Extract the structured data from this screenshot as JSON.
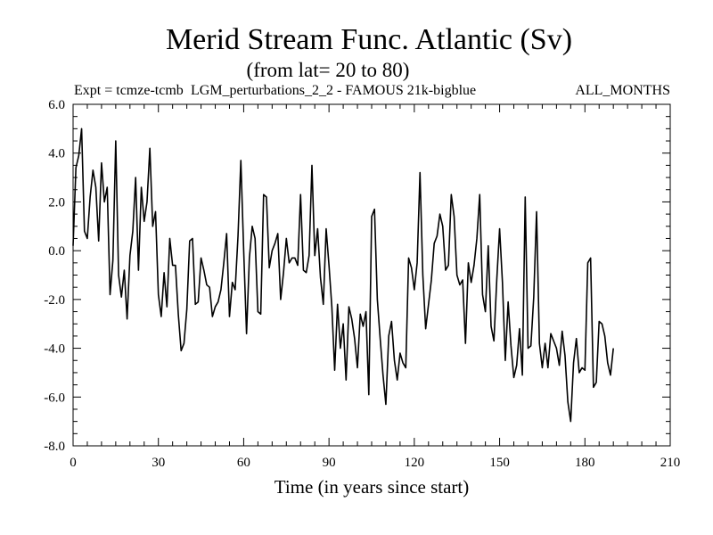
{
  "chart_data": {
    "type": "line",
    "title": "Merid Stream Func. Atlantic (Sv)",
    "subtitle": "(from lat= 20 to 80)",
    "header_left": "Expt = tcmze-tcmb",
    "header_center": "LGM_perturbations_2_2 - FAMOUS 21k-bigblue",
    "header_right": "ALL_MONTHS",
    "xlabel": "Time (in years since start)",
    "ylabel": "",
    "xlim": [
      0,
      210
    ],
    "ylim": [
      -8,
      6
    ],
    "x_ticks": [
      0,
      30,
      60,
      90,
      120,
      150,
      180,
      210
    ],
    "x_tick_labels": [
      "0",
      "30",
      "60",
      "90",
      "120",
      "150",
      "180",
      "210"
    ],
    "y_ticks": [
      -8,
      -6,
      -4,
      -2,
      0,
      2,
      4,
      6
    ],
    "y_tick_labels": [
      "-8.0",
      "-6.0",
      "-4.0",
      "-2.0",
      "0.0",
      "2.0",
      "4.0",
      "6.0"
    ],
    "grid": false,
    "line_color": "#000000",
    "x_start": 0,
    "x_step": 1,
    "series": [
      {
        "name": "Merid Stream Func. Atlantic",
        "values": [
          0.2,
          3.4,
          3.9,
          5.0,
          0.8,
          0.5,
          2.2,
          3.3,
          2.6,
          0.4,
          3.6,
          2.0,
          2.6,
          -1.8,
          -0.4,
          4.5,
          -1.0,
          -1.9,
          -0.8,
          -2.8,
          -0.2,
          0.8,
          3.0,
          -0.8,
          2.6,
          1.2,
          2.0,
          4.2,
          1.0,
          1.6,
          -1.8,
          -2.7,
          -0.9,
          -2.3,
          0.5,
          -0.6,
          -0.6,
          -2.6,
          -4.1,
          -3.8,
          -2.4,
          0.4,
          0.5,
          -2.2,
          -2.1,
          -0.3,
          -0.8,
          -1.4,
          -1.5,
          -2.7,
          -2.3,
          -2.1,
          -1.6,
          -0.5,
          0.7,
          -2.7,
          -1.3,
          -1.6,
          0.6,
          3.7,
          0.0,
          -3.4,
          -0.3,
          1.0,
          0.5,
          -2.5,
          -2.6,
          2.3,
          2.2,
          -0.7,
          0.0,
          0.3,
          0.7,
          -2.0,
          -0.9,
          0.5,
          -0.5,
          -0.3,
          -0.3,
          -0.6,
          2.3,
          -0.8,
          -0.9,
          -0.2,
          3.5,
          -0.2,
          0.9,
          -1.1,
          -2.2,
          0.9,
          -0.6,
          -2.3,
          -4.9,
          -2.2,
          -4.0,
          -3.0,
          -5.3,
          -2.3,
          -2.8,
          -3.6,
          -4.8,
          -2.6,
          -3.1,
          -2.5,
          -5.9,
          1.4,
          1.7,
          -2.0,
          -3.6,
          -5.1,
          -6.3,
          -3.5,
          -2.9,
          -4.5,
          -5.3,
          -4.2,
          -4.6,
          -4.8,
          -0.3,
          -0.7,
          -1.6,
          -0.5,
          3.2,
          -1.0,
          -3.2,
          -2.2,
          -1.2,
          0.3,
          0.6,
          1.5,
          1.0,
          -0.8,
          -0.6,
          2.3,
          1.4,
          -1.0,
          -1.4,
          -1.2,
          -3.8,
          -0.5,
          -1.3,
          -0.6,
          0.5,
          2.3,
          -1.8,
          -2.5,
          0.2,
          -3.1,
          -3.7,
          -1.2,
          0.9,
          -1.3,
          -4.5,
          -2.1,
          -3.9,
          -5.2,
          -4.7,
          -3.2,
          -5.1,
          2.2,
          -4.0,
          -3.9,
          -1.9,
          1.6,
          -3.8,
          -4.8,
          -3.8,
          -4.8,
          -3.4,
          -3.7,
          -4.0,
          -4.7,
          -3.3,
          -4.3,
          -6.2,
          -7.0,
          -4.6,
          -3.6,
          -5.0,
          -4.8,
          -4.9,
          -0.5,
          -0.3,
          -5.6,
          -5.4,
          -2.9,
          -3.0,
          -3.5,
          -4.6,
          -5.1,
          -4.0
        ]
      }
    ]
  }
}
